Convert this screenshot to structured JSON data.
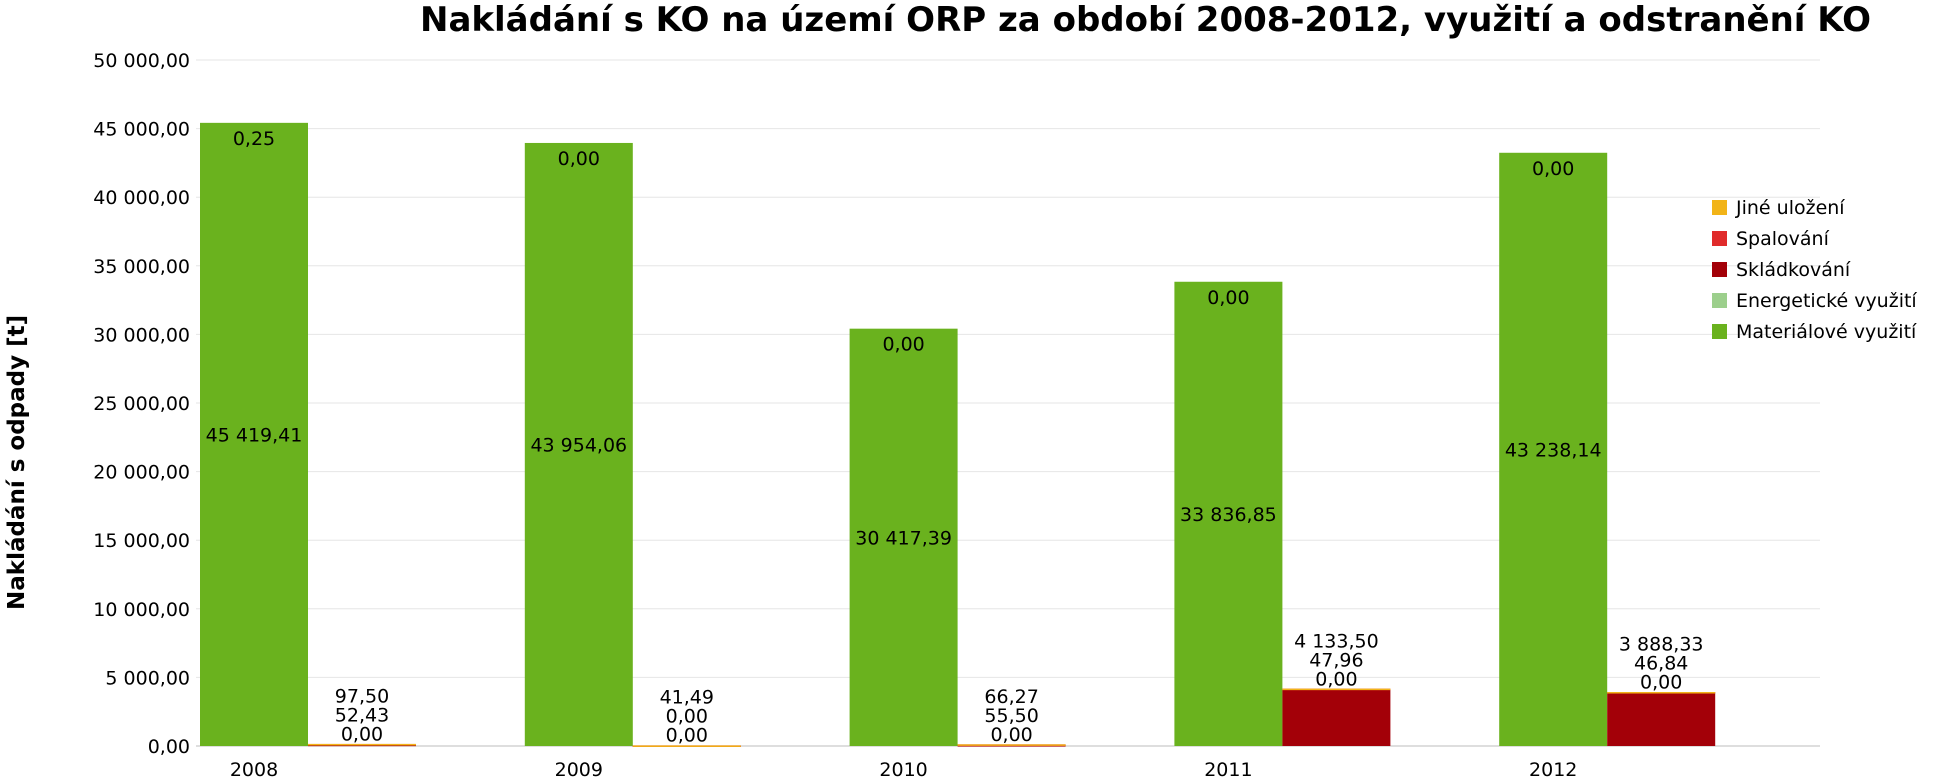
{
  "chart_data": {
    "type": "bar",
    "title": "Nakládání s KO na území ORP za období 2008-2012, využití a odstranění KO",
    "xlabel": "",
    "ylabel": "Nakládání s odpady [t]",
    "ylim": [
      0,
      50000
    ],
    "yticks": [
      "0,00",
      "5 000,00",
      "10 000,00",
      "15 000,00",
      "20 000,00",
      "25 000,00",
      "30 000,00",
      "35 000,00",
      "40 000,00",
      "45 000,00",
      "50 000,00"
    ],
    "categories": [
      "2008",
      "2009",
      "2010",
      "2011",
      "2012"
    ],
    "grid": true,
    "legend_position": "right",
    "series": [
      {
        "name": "Jiné uložení",
        "color": "#f2b418",
        "stack": "odstranění",
        "values": [
          0.0,
          0.0,
          0.0,
          0.0,
          0.0
        ],
        "labels": [
          "0,00",
          "0,00",
          "0,00",
          "0,00",
          "0,00"
        ]
      },
      {
        "name": "Spalování",
        "color": "#e02b2b",
        "stack": "odstranění",
        "values": [
          52.43,
          0.0,
          55.5,
          47.96,
          46.84
        ],
        "labels": [
          "52,43",
          "0,00",
          "55,50",
          "47,96",
          "46,84"
        ]
      },
      {
        "name": "Skládkování",
        "color": "#a30008",
        "stack": "odstranění",
        "values": [
          97.5,
          41.49,
          66.27,
          4133.5,
          3888.33
        ],
        "labels": [
          "97,50",
          "41,49",
          "66,27",
          "4 133,50",
          "3 888,33"
        ]
      },
      {
        "name": "Energetické využití",
        "color": "#9ccf8c",
        "stack": "využití",
        "values": [
          0.25,
          0.0,
          0.0,
          0.0,
          0.0
        ],
        "labels": [
          "0,25",
          "0,00",
          "0,00",
          "0,00",
          "0,00"
        ]
      },
      {
        "name": "Materiálové využití",
        "color": "#6ab21e",
        "stack": "využití",
        "values": [
          45419.41,
          43954.06,
          30417.39,
          33836.85,
          43238.14
        ],
        "labels": [
          "45 419,41",
          "43 954,06",
          "30 417,39",
          "33 836,85",
          "43 238,14"
        ]
      }
    ]
  }
}
